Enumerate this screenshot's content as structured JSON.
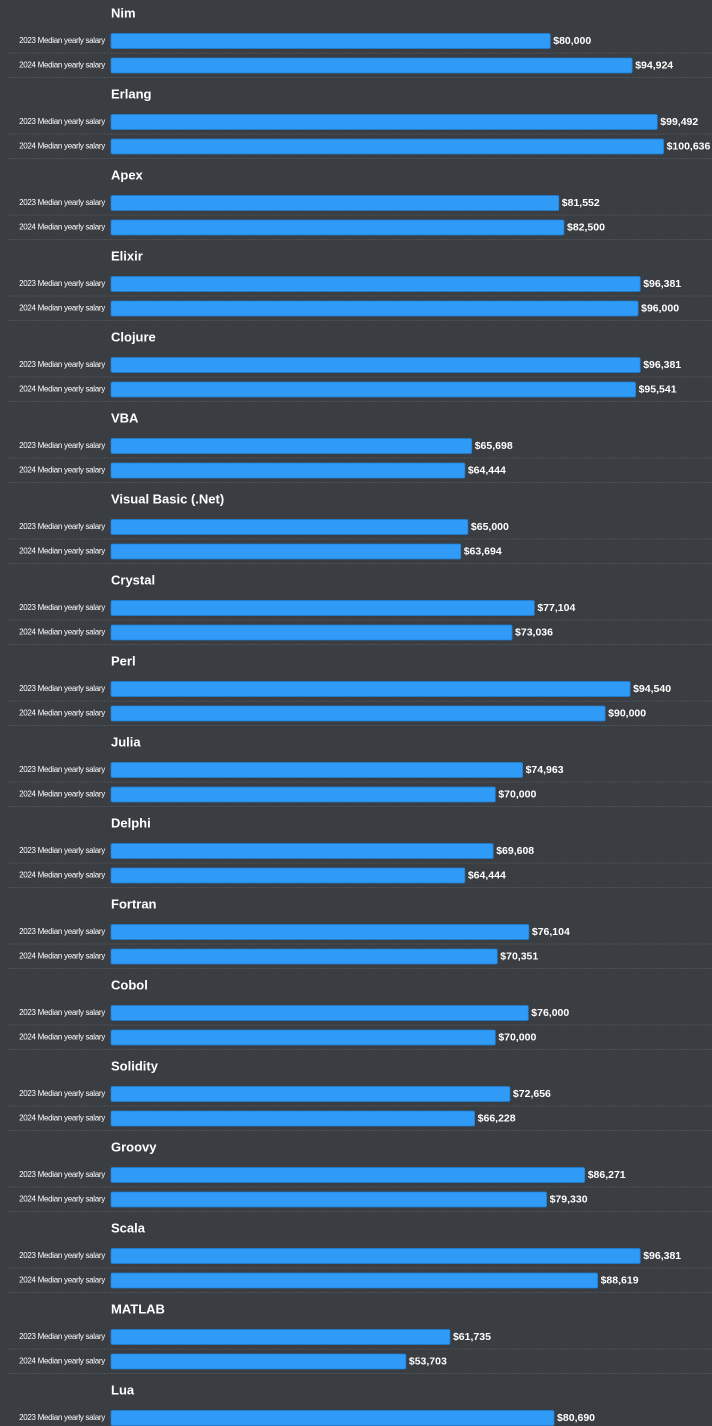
{
  "chart_data": {
    "type": "bar",
    "orientation": "horizontal",
    "categories": [
      "Nim",
      "Erlang",
      "Apex",
      "Elixir",
      "Clojure",
      "VBA",
      "Visual Basic (.Net)",
      "Crystal",
      "Perl",
      "Julia",
      "Delphi",
      "Fortran",
      "Cobol",
      "Solidity",
      "Groovy",
      "Scala",
      "MATLAB",
      "Lua"
    ],
    "series": [
      {
        "name": "2023 Median yearly salary",
        "color": "#2f9bf7",
        "values": [
          80000,
          99492,
          81552,
          96381,
          96381,
          65698,
          65000,
          77104,
          94540,
          74963,
          69608,
          76104,
          76000,
          72656,
          86271,
          96381,
          61735,
          80690
        ],
        "value_labels": [
          "$80,000",
          "$99,492",
          "$81,552",
          "$96,381",
          "$96,381",
          "$65,698",
          "$65,000",
          "$77,104",
          "$94,540",
          "$74,963",
          "$69,608",
          "$76,104",
          "$76,000",
          "$72,656",
          "$86,271",
          "$96,381",
          "$61,735",
          "$80,690"
        ]
      },
      {
        "name": "2024 Median yearly salary",
        "color": "#2f9bf7",
        "values": [
          94924,
          100636,
          82500,
          96000,
          95541,
          64444,
          63694,
          73036,
          90000,
          70000,
          64444,
          70351,
          70000,
          66228,
          79330,
          88619,
          53703,
          null
        ],
        "value_labels": [
          "$94,924",
          "$100,636",
          "$82,500",
          "$96,000",
          "$95,541",
          "$64,444",
          "$63,694",
          "$73,036",
          "$90,000",
          "$70,000",
          "$64,444",
          "$70,351",
          "$70,000",
          "$66,228",
          "$79,330",
          "$88,619",
          "$53,703",
          null
        ]
      }
    ],
    "xlim": [
      0,
      108000
    ]
  }
}
